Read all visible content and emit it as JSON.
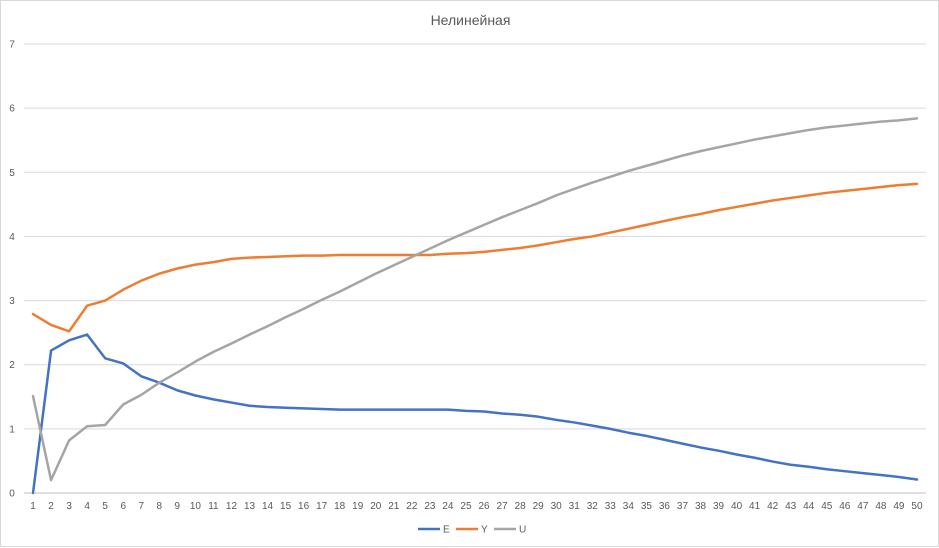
{
  "chart_data": {
    "type": "line",
    "title": "Нелинейная",
    "xlabel": "",
    "ylabel": "",
    "ylim": [
      0,
      7
    ],
    "yticks": [
      0,
      1,
      2,
      3,
      4,
      5,
      6,
      7
    ],
    "grid": "horizontal",
    "legend_position": "bottom",
    "categories": [
      "1",
      "2",
      "3",
      "4",
      "5",
      "6",
      "7",
      "8",
      "9",
      "10",
      "11",
      "12",
      "13",
      "14",
      "15",
      "16",
      "17",
      "18",
      "19",
      "20",
      "21",
      "22",
      "23",
      "24",
      "25",
      "26",
      "27",
      "28",
      "29",
      "30",
      "31",
      "32",
      "33",
      "34",
      "35",
      "36",
      "37",
      "38",
      "39",
      "40",
      "41",
      "42",
      "43",
      "44",
      "45",
      "46",
      "47",
      "48",
      "49",
      "50"
    ],
    "series": [
      {
        "name": "E",
        "color": "#4472C4",
        "values": [
          0,
          2.22,
          2.38,
          2.47,
          2.1,
          2.02,
          1.82,
          1.72,
          1.6,
          1.52,
          1.46,
          1.41,
          1.36,
          1.34,
          1.33,
          1.32,
          1.31,
          1.3,
          1.3,
          1.3,
          1.3,
          1.3,
          1.3,
          1.3,
          1.28,
          1.27,
          1.24,
          1.22,
          1.19,
          1.14,
          1.1,
          1.05,
          1.0,
          0.94,
          0.89,
          0.83,
          0.77,
          0.71,
          0.66,
          0.6,
          0.55,
          0.49,
          0.44,
          0.41,
          0.37,
          0.34,
          0.31,
          0.28,
          0.25,
          0.21
        ]
      },
      {
        "name": "Y",
        "color": "#ED7D31",
        "values": [
          2.79,
          2.62,
          2.52,
          2.92,
          3.0,
          3.17,
          3.31,
          3.42,
          3.5,
          3.56,
          3.6,
          3.65,
          3.67,
          3.68,
          3.69,
          3.7,
          3.7,
          3.71,
          3.71,
          3.71,
          3.71,
          3.71,
          3.71,
          3.73,
          3.74,
          3.76,
          3.79,
          3.82,
          3.86,
          3.91,
          3.96,
          4.0,
          4.06,
          4.12,
          4.18,
          4.24,
          4.3,
          4.35,
          4.41,
          4.46,
          4.51,
          4.56,
          4.6,
          4.64,
          4.68,
          4.71,
          4.74,
          4.77,
          4.8,
          4.82
        ]
      },
      {
        "name": "U",
        "color": "#A5A5A5",
        "values": [
          1.51,
          0.2,
          0.82,
          1.04,
          1.06,
          1.38,
          1.53,
          1.72,
          1.88,
          2.05,
          2.2,
          2.33,
          2.47,
          2.6,
          2.74,
          2.87,
          3.01,
          3.14,
          3.28,
          3.42,
          3.55,
          3.68,
          3.81,
          3.94,
          4.06,
          4.18,
          4.3,
          4.41,
          4.52,
          4.64,
          4.74,
          4.84,
          4.93,
          5.02,
          5.1,
          5.18,
          5.26,
          5.33,
          5.39,
          5.45,
          5.51,
          5.56,
          5.61,
          5.66,
          5.7,
          5.73,
          5.76,
          5.79,
          5.81,
          5.84
        ]
      }
    ]
  }
}
